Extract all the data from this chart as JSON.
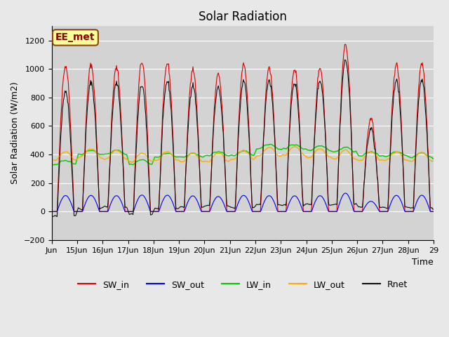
{
  "title": "Solar Radiation",
  "xlabel": "Time",
  "ylabel": "Solar Radiation (W/m2)",
  "ylim": [
    -200,
    1300
  ],
  "yticks": [
    -200,
    0,
    200,
    400,
    600,
    800,
    1000,
    1200
  ],
  "station_label": "EE_met",
  "background_color": "#e8e8e8",
  "plot_bg_color": "#d8d8d8",
  "grid_color": "#ffffff",
  "colors": {
    "SW_in": "#dd0000",
    "SW_out": "#0000ee",
    "LW_in": "#00cc00",
    "LW_out": "#ffaa00",
    "Rnet": "#111111"
  },
  "legend_labels": [
    "SW_in",
    "SW_out",
    "LW_in",
    "LW_out",
    "Rnet"
  ],
  "start_day": 14,
  "end_day": 29,
  "n_days": 15,
  "hours_per_day": 24,
  "dt_hours": 0.5
}
